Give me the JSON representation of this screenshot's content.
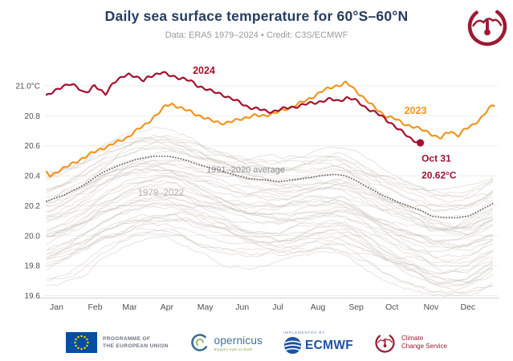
{
  "header": {
    "title": "Daily sea surface temperature for 60°S–60°N",
    "subtitle": "Data: ERA5 1979–2024 • Credit: C3S/ECMWF"
  },
  "colors": {
    "line_2024": "#a5102d",
    "line_2023": "#f3941e",
    "average_dotted": "#6e6a66",
    "background_lines": "rgba(202,193,184,0.5)",
    "title": "#263c5f",
    "subtitle": "#9b9b9b",
    "axis_text": "#4f4f4f",
    "grid": "#ededed",
    "baseline": "#d8d8d8",
    "annotation_gray": "#8c8c8c",
    "annotation_lightgray": "#b6ada3",
    "annotation_dark_red": "#9c1330",
    "eu_blue": "#034ea2",
    "eu_gold": "#ffcc00",
    "ecmwf_blue": "#1c52a2",
    "copernicus_blue": "#3f6f92",
    "copernicus_green": "#79a03f",
    "c3s_maroon": "#9a1b33"
  },
  "chart_data": {
    "type": "line",
    "title": "Daily sea surface temperature for 60°S–60°N",
    "subtitle": "Data: ERA5 1979–2024 • Credit: C3S/ECMWF",
    "ylim": [
      19.59,
      21.12
    ],
    "grid": true,
    "yticks": [
      {
        "value": 21.0,
        "label": "21.0°C"
      },
      {
        "value": 20.8,
        "label": "20.8"
      },
      {
        "value": 20.6,
        "label": "20.6"
      },
      {
        "value": 20.4,
        "label": "20.4"
      },
      {
        "value": 20.2,
        "label": "20.2"
      },
      {
        "value": 20.0,
        "label": "20.0"
      },
      {
        "value": 19.8,
        "label": "19.8"
      },
      {
        "value": 19.6,
        "label": "19.6"
      }
    ],
    "months": [
      "Jan",
      "Feb",
      "Mar",
      "Apr",
      "May",
      "Jun",
      "Jul",
      "Aug",
      "Sep",
      "Oct",
      "Nov",
      "Dec"
    ],
    "month_start_days": [
      1,
      32,
      60,
      91,
      121,
      152,
      182,
      213,
      244,
      274,
      305,
      335
    ],
    "series": [
      {
        "name": "2024",
        "style": "solid",
        "color_role": "line_2024",
        "ends_day": 305,
        "points": [
          [
            1,
            20.93
          ],
          [
            5,
            20.95
          ],
          [
            10,
            20.98
          ],
          [
            14,
            21.0
          ],
          [
            20,
            21.01
          ],
          [
            26,
            20.99
          ],
          [
            31,
            20.96
          ],
          [
            36,
            20.97
          ],
          [
            40,
            21.0
          ],
          [
            44,
            20.97
          ],
          [
            49,
            20.95
          ],
          [
            55,
            21.02
          ],
          [
            60,
            21.04
          ],
          [
            63,
            21.06
          ],
          [
            68,
            21.08
          ],
          [
            72,
            21.07
          ],
          [
            76,
            21.05
          ],
          [
            80,
            21.03
          ],
          [
            84,
            21.06
          ],
          [
            90,
            21.08
          ],
          [
            95,
            21.09
          ],
          [
            100,
            21.07
          ],
          [
            106,
            21.06
          ],
          [
            112,
            21.05
          ],
          [
            118,
            21.03
          ],
          [
            120,
            21.02
          ],
          [
            124,
            21.0
          ],
          [
            128,
            20.99
          ],
          [
            131,
            20.98
          ],
          [
            136,
            20.96
          ],
          [
            140,
            20.95
          ],
          [
            145,
            20.94
          ],
          [
            150,
            20.92
          ],
          [
            155,
            20.9
          ],
          [
            160,
            20.88
          ],
          [
            165,
            20.86
          ],
          [
            170,
            20.85
          ],
          [
            175,
            20.84
          ],
          [
            180,
            20.83
          ],
          [
            185,
            20.83
          ],
          [
            190,
            20.84
          ],
          [
            196,
            20.85
          ],
          [
            202,
            20.86
          ],
          [
            208,
            20.87
          ],
          [
            214,
            20.88
          ],
          [
            220,
            20.89
          ],
          [
            226,
            20.9
          ],
          [
            232,
            20.91
          ],
          [
            238,
            20.9
          ],
          [
            245,
            20.92
          ],
          [
            250,
            20.91
          ],
          [
            255,
            20.89
          ],
          [
            260,
            20.86
          ],
          [
            266,
            20.83
          ],
          [
            273,
            20.8
          ],
          [
            280,
            20.76
          ],
          [
            287,
            20.71
          ],
          [
            294,
            20.67
          ],
          [
            299,
            20.64
          ],
          [
            302,
            20.63
          ],
          [
            305,
            20.62
          ]
        ]
      },
      {
        "name": "2023",
        "style": "solid",
        "color_role": "line_2023",
        "ends_day": 365,
        "points": [
          [
            1,
            20.42
          ],
          [
            4,
            20.4
          ],
          [
            8,
            20.42
          ],
          [
            12,
            20.44
          ],
          [
            18,
            20.46
          ],
          [
            24,
            20.49
          ],
          [
            31,
            20.52
          ],
          [
            38,
            20.55
          ],
          [
            45,
            20.58
          ],
          [
            52,
            20.6
          ],
          [
            60,
            20.63
          ],
          [
            67,
            20.66
          ],
          [
            74,
            20.7
          ],
          [
            81,
            20.74
          ],
          [
            88,
            20.79
          ],
          [
            94,
            20.83
          ],
          [
            98,
            20.87
          ],
          [
            103,
            20.88
          ],
          [
            108,
            20.86
          ],
          [
            113,
            20.84
          ],
          [
            118,
            20.83
          ],
          [
            123,
            20.81
          ],
          [
            128,
            20.79
          ],
          [
            134,
            20.77
          ],
          [
            140,
            20.76
          ],
          [
            146,
            20.75
          ],
          [
            152,
            20.76
          ],
          [
            158,
            20.78
          ],
          [
            164,
            20.79
          ],
          [
            170,
            20.8
          ],
          [
            176,
            20.8
          ],
          [
            182,
            20.81
          ],
          [
            188,
            20.82
          ],
          [
            194,
            20.84
          ],
          [
            200,
            20.86
          ],
          [
            206,
            20.88
          ],
          [
            212,
            20.9
          ],
          [
            218,
            20.93
          ],
          [
            224,
            20.96
          ],
          [
            230,
            20.98
          ],
          [
            236,
            21.0
          ],
          [
            241,
            21.01
          ],
          [
            244,
            21.02
          ],
          [
            248,
            21.0
          ],
          [
            252,
            20.97
          ],
          [
            258,
            20.93
          ],
          [
            264,
            20.88
          ],
          [
            270,
            20.84
          ],
          [
            277,
            20.8
          ],
          [
            284,
            20.78
          ],
          [
            291,
            20.75
          ],
          [
            298,
            20.73
          ],
          [
            305,
            20.71
          ],
          [
            312,
            20.69
          ],
          [
            318,
            20.66
          ],
          [
            322,
            20.65
          ],
          [
            326,
            20.68
          ],
          [
            330,
            20.7
          ],
          [
            333,
            20.68
          ],
          [
            336,
            20.67
          ],
          [
            340,
            20.7
          ],
          [
            344,
            20.72
          ],
          [
            348,
            20.74
          ],
          [
            352,
            20.77
          ],
          [
            356,
            20.8
          ],
          [
            360,
            20.84
          ],
          [
            363,
            20.86
          ],
          [
            365,
            20.87
          ]
        ]
      },
      {
        "name": "1991–2020 average",
        "style": "dotted",
        "color_role": "average_dotted",
        "ends_day": 365,
        "points": [
          [
            1,
            20.23
          ],
          [
            15,
            20.27
          ],
          [
            32,
            20.34
          ],
          [
            46,
            20.42
          ],
          [
            60,
            20.47
          ],
          [
            74,
            20.51
          ],
          [
            88,
            20.53
          ],
          [
            100,
            20.53
          ],
          [
            112,
            20.51
          ],
          [
            126,
            20.47
          ],
          [
            140,
            20.44
          ],
          [
            152,
            20.41
          ],
          [
            166,
            20.38
          ],
          [
            182,
            20.37
          ],
          [
            190,
            20.36
          ],
          [
            200,
            20.37
          ],
          [
            213,
            20.385
          ],
          [
            224,
            20.4
          ],
          [
            236,
            20.41
          ],
          [
            244,
            20.4
          ],
          [
            252,
            20.37
          ],
          [
            263,
            20.32
          ],
          [
            274,
            20.27
          ],
          [
            288,
            20.22
          ],
          [
            298,
            20.19
          ],
          [
            305,
            20.17
          ],
          [
            314,
            20.13
          ],
          [
            324,
            20.12
          ],
          [
            335,
            20.12
          ],
          [
            344,
            20.13
          ],
          [
            354,
            20.17
          ],
          [
            361,
            20.2
          ],
          [
            365,
            20.22
          ]
        ]
      }
    ],
    "background_years": {
      "label": "1979–2022",
      "year_from": 1979,
      "year_to": 2022,
      "count": 44,
      "color_role": "background_lines",
      "description": "44 thin gray daily traces, one per year 1979-2022, spanning roughly 19.6-20.75°C, following the seasonal shape of the climatological average with older years cooler"
    },
    "endpoint": {
      "series": "2024",
      "day": 305,
      "temp": 20.62,
      "label_line1": "Oct 31",
      "label_line2": "20.62°C"
    },
    "annotations": [
      {
        "id": "label-2024",
        "text": "2024",
        "day": 129,
        "temp": 21.103,
        "anchor": "middle",
        "role": "line_2024",
        "bold": true,
        "size": 12.5
      },
      {
        "id": "label-2023",
        "text": "2023",
        "day": 301,
        "temp": 20.835,
        "anchor": "middle",
        "role": "line_2023",
        "bold": true,
        "size": 12.5
      },
      {
        "id": "label-average",
        "text": "1991–2020 average",
        "day": 163,
        "temp": 20.443,
        "anchor": "middle",
        "role": "annotation_gray",
        "bold": false,
        "size": 11
      },
      {
        "id": "label-background",
        "text": "1979–2022",
        "day": 94,
        "temp": 20.289,
        "anchor": "middle",
        "role": "annotation_lightgray",
        "bold": false,
        "size": 11.5
      },
      {
        "id": "endpoint-date",
        "text": "Oct 31",
        "day": 306,
        "temp": 20.517,
        "anchor": "start",
        "role": "annotation_dark_red",
        "bold": true,
        "size": 12
      },
      {
        "id": "endpoint-value",
        "text": "20.62°C",
        "day": 306,
        "temp": 20.404,
        "anchor": "start",
        "role": "annotation_dark_red",
        "bold": true,
        "size": 12
      }
    ]
  },
  "footer": {
    "eu": {
      "line1": "PROGRAMME OF",
      "line2": "THE EUROPEAN UNION"
    },
    "copernicus": {
      "name": "opernicus",
      "tagline": "Europe's eyes on Earth"
    },
    "ecmwf": {
      "implemented_by": "IMPLEMENTED BY",
      "name": "ECMWF"
    },
    "c3s": {
      "line1": "Climate",
      "line2": "Change Service"
    }
  }
}
